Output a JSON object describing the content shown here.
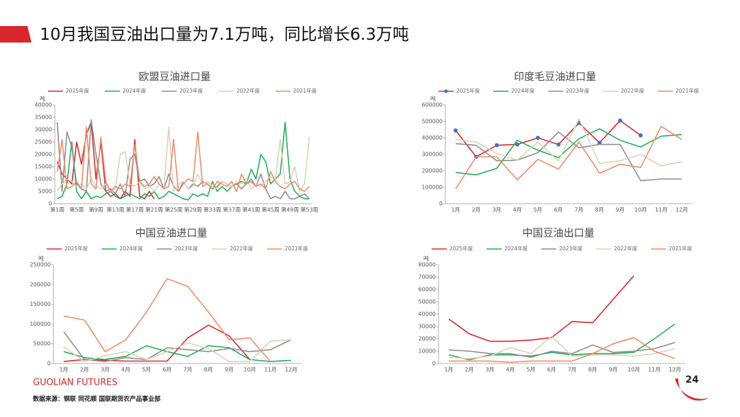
{
  "title": "10月我国豆油出口量为7.1万吨，同比增长6.3万吨",
  "brand": "GUOLIAN FUTURES",
  "source": "数据来源：钢联 同花顺 国联期货农产品事业部",
  "page_number": "24",
  "chart_data": [
    {
      "type": "line",
      "title": "欧盟豆油进口量",
      "y_label": "吨",
      "legend": "top",
      "categories": [
        "第1周",
        null,
        null,
        null,
        "第5周",
        null,
        null,
        null,
        "第9周",
        null,
        null,
        null,
        "第13周",
        null,
        null,
        null,
        "第17周",
        null,
        null,
        null,
        "第21周",
        null,
        null,
        null,
        "第25周",
        null,
        null,
        null,
        "第29周",
        null,
        null,
        null,
        "第33周",
        null,
        null,
        null,
        "第37周",
        null,
        null,
        null,
        "第41周",
        null,
        null,
        null,
        "第45周",
        null,
        null,
        null,
        "第49周",
        null,
        null,
        null,
        "第53周"
      ],
      "ylim": [
        0,
        40000
      ],
      "yticks": [
        0,
        5000,
        10000,
        15000,
        20000,
        25000,
        30000,
        35000,
        40000
      ],
      "series": [
        {
          "name": "2025年度",
          "color": "#d9262b",
          "values": [
            17000,
            12000,
            10000,
            8000,
            25000,
            16000,
            28000,
            33000,
            10000,
            25000,
            5000,
            3000,
            4000,
            2000,
            5000,
            3000,
            26000,
            3000,
            2000,
            5000,
            2000,
            null,
            null,
            null,
            null,
            null,
            null,
            null,
            null,
            null,
            null,
            null,
            null,
            null,
            null,
            null,
            null,
            null,
            null,
            null,
            null,
            null,
            null,
            null,
            null,
            null,
            null,
            null,
            null,
            null,
            null,
            null,
            null
          ]
        },
        {
          "name": "2024年度",
          "color": "#1fae56",
          "values": [
            2000,
            3000,
            8000,
            25000,
            5000,
            2000,
            5000,
            2000,
            3000,
            2500,
            4000,
            5000,
            3000,
            2000,
            3000,
            4000,
            3000,
            2000,
            4000,
            3000,
            5000,
            2000,
            3000,
            5000,
            4000,
            3000,
            2000,
            1500,
            4000,
            3000,
            4000,
            3000,
            9000,
            5000,
            7000,
            5000,
            7000,
            8000,
            9000,
            8000,
            14000,
            10000,
            20000,
            17000,
            8000,
            10000,
            12000,
            33000,
            10000,
            5000,
            3000,
            2000,
            2000
          ]
        },
        {
          "name": "2023年度",
          "color": "#8c8c8c",
          "values": [
            33000,
            5000,
            29000,
            23000,
            8000,
            6000,
            5000,
            34000,
            20000,
            8000,
            5000,
            6000,
            4000,
            8000,
            3000,
            18000,
            20000,
            9000,
            10000,
            7000,
            8000,
            11000,
            6000,
            12000,
            7000,
            5000,
            9000,
            6000,
            8000,
            7000,
            9000,
            8000,
            6000,
            7000,
            9000,
            8000,
            7000,
            8000,
            6000,
            8000,
            10000,
            7000,
            12000,
            6000,
            2000,
            3000,
            2000,
            5000,
            2000,
            2000,
            3000,
            4000,
            2000
          ]
        },
        {
          "name": "2022年度",
          "color": "#d8d3b8",
          "values": [
            5000,
            8000,
            10000,
            9000,
            7000,
            8000,
            6000,
            10000,
            7000,
            6000,
            8000,
            5000,
            6000,
            20000,
            21000,
            8000,
            7000,
            9000,
            6000,
            7000,
            5000,
            8000,
            6000,
            31000,
            5000,
            8000,
            9000,
            6000,
            7000,
            12000,
            8000,
            9000,
            7000,
            6000,
            9000,
            8000,
            7000,
            9000,
            8000,
            10000,
            6000,
            8000,
            7000,
            9000,
            11000,
            10000,
            26000,
            8000,
            9000,
            15000,
            5000,
            8000,
            27000
          ]
        },
        {
          "name": "2021年度",
          "color": "#ef8b67",
          "values": [
            13000,
            26000,
            6000,
            7000,
            9000,
            6000,
            31000,
            8000,
            6000,
            27000,
            9000,
            5000,
            7000,
            6000,
            8000,
            7000,
            24000,
            9000,
            7000,
            8000,
            11000,
            8000,
            6000,
            7000,
            26000,
            5000,
            8000,
            10000,
            9000,
            29000,
            7000,
            8000,
            6000,
            9000,
            8000,
            7000,
            9000,
            5000,
            12000,
            8000,
            9000,
            7000,
            8000,
            6000,
            13000,
            9000,
            7000,
            6000,
            8000,
            9000,
            6000,
            5000,
            7000
          ]
        }
      ]
    },
    {
      "type": "line",
      "title": "印度毛豆油进口量",
      "y_label": "吨",
      "legend": "top",
      "categories": [
        "1月",
        "2月",
        "3月",
        "4月",
        "5月",
        "6月",
        "7月",
        "8月",
        "9月",
        "10月",
        "11月",
        "12月"
      ],
      "ylim": [
        0,
        600000
      ],
      "yticks": [
        0,
        100000,
        200000,
        300000,
        400000,
        500000,
        600000
      ],
      "series": [
        {
          "name": "2025年度",
          "color": "#d9262b",
          "marker_color": "#4472c4",
          "values": [
            445000,
            285000,
            355000,
            360000,
            400000,
            360000,
            490000,
            370000,
            505000,
            415000,
            null,
            null
          ]
        },
        {
          "name": "2024年度",
          "color": "#1fae56",
          "values": [
            190000,
            175000,
            215000,
            385000,
            325000,
            280000,
            395000,
            455000,
            385000,
            345000,
            410000,
            420000
          ]
        },
        {
          "name": "2023年度",
          "color": "#8c8c8c",
          "values": [
            365000,
            355000,
            260000,
            265000,
            310000,
            435000,
            340000,
            360000,
            360000,
            140000,
            150000,
            150000
          ]
        },
        {
          "name": "2022年度",
          "color": "#d8d3b8",
          "values": [
            390000,
            375000,
            305000,
            265000,
            375000,
            260000,
            515000,
            245000,
            260000,
            300000,
            230000,
            255000
          ]
        },
        {
          "name": "2021年度",
          "color": "#ef8b67",
          "values": [
            90000,
            285000,
            285000,
            145000,
            270000,
            210000,
            375000,
            185000,
            240000,
            220000,
            470000,
            390000
          ]
        }
      ]
    },
    {
      "type": "line",
      "title": "中国豆油进口量",
      "y_label": "吨",
      "legend": "top",
      "categories": [
        "1月",
        "2月",
        "3月",
        "4月",
        "5月",
        "6月",
        "7月",
        "8月",
        "9月",
        "10月",
        "11月",
        "12月"
      ],
      "ylim": [
        0,
        250000
      ],
      "yticks": [
        0,
        50000,
        100000,
        150000,
        200000,
        250000
      ],
      "series": [
        {
          "name": "2025年度",
          "color": "#d9262b",
          "values": [
            5000,
            10000,
            8000,
            6000,
            6000,
            6000,
            65000,
            97000,
            70000,
            10000,
            null,
            null
          ]
        },
        {
          "name": "2024年度",
          "color": "#1fae56",
          "values": [
            30000,
            15000,
            10000,
            18000,
            45000,
            30000,
            18000,
            45000,
            40000,
            10000,
            5000,
            8000
          ]
        },
        {
          "name": "2023年度",
          "color": "#8c8c8c",
          "values": [
            80000,
            10000,
            5000,
            15000,
            10000,
            40000,
            35000,
            30000,
            38000,
            30000,
            35000,
            60000
          ]
        },
        {
          "name": "2022年度",
          "color": "#d8d3b8",
          "values": [
            42000,
            5000,
            20000,
            30000,
            10000,
            30000,
            52000,
            38000,
            5000,
            5000,
            57000,
            60000
          ]
        },
        {
          "name": "2021年度",
          "color": "#ef8b67",
          "values": [
            120000,
            110000,
            30000,
            60000,
            130000,
            215000,
            195000,
            130000,
            60000,
            65000,
            5000,
            null
          ]
        }
      ]
    },
    {
      "type": "line",
      "title": "中国豆油出口量",
      "y_label": "吨",
      "legend": "top",
      "categories": [
        "1月",
        "2月",
        "3月",
        "4月",
        "5月",
        "6月",
        "7月",
        "8月",
        "9月",
        "10月",
        "11月",
        "12月"
      ],
      "ylim": [
        0,
        80000
      ],
      "yticks": [
        0,
        10000,
        20000,
        30000,
        40000,
        50000,
        60000,
        70000,
        80000
      ],
      "series": [
        {
          "name": "2025年度",
          "color": "#d9262b",
          "values": [
            36000,
            24000,
            18000,
            18000,
            19000,
            21000,
            34000,
            33000,
            52000,
            71000,
            null,
            null
          ]
        },
        {
          "name": "2024年度",
          "color": "#1fae56",
          "values": [
            7000,
            3000,
            7000,
            7000,
            6000,
            9000,
            7000,
            8000,
            8000,
            9000,
            20000,
            32000
          ]
        },
        {
          "name": "2023年度",
          "color": "#8c8c8c",
          "values": [
            11000,
            10000,
            8000,
            8000,
            5000,
            10000,
            8000,
            15000,
            9000,
            10000,
            12000,
            17000
          ]
        },
        {
          "name": "2022年度",
          "color": "#d8d3b8",
          "values": [
            5000,
            4000,
            6000,
            13000,
            8000,
            22000,
            6000,
            7000,
            7000,
            6000,
            8000,
            12000
          ]
        },
        {
          "name": "2021年度",
          "color": "#ef8b67",
          "values": [
            2000,
            2000,
            2000,
            1000,
            2000,
            2000,
            2000,
            8000,
            16000,
            21000,
            10000,
            4000
          ]
        }
      ]
    }
  ]
}
